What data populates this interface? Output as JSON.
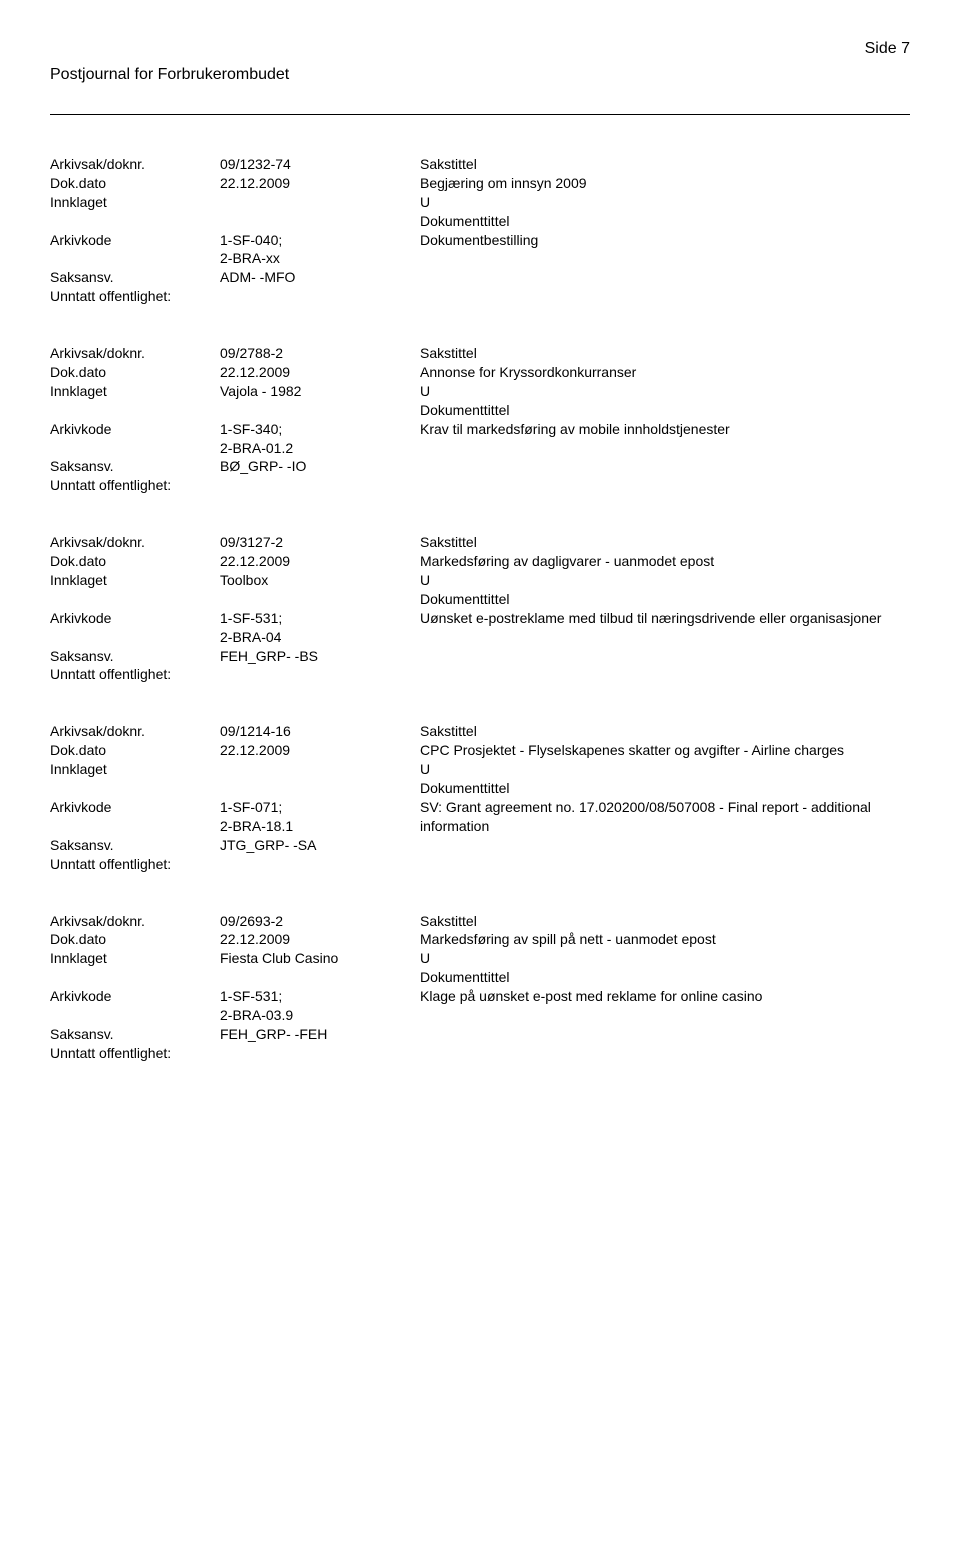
{
  "header": {
    "title": "Postjournal for Forbrukerombudet",
    "page": "Side 7"
  },
  "labels": {
    "arkivsak": "Arkivsak/doknr.",
    "dokdato": "Dok.dato",
    "innklaget": "Innklaget",
    "arkivkode": "Arkivkode",
    "saksansv": "Saksansv.",
    "unntatt": "Unntatt offentlighet:",
    "sakstittel": "Sakstittel",
    "doktittel": "Dokumenttittel"
  },
  "records": [
    {
      "arkivsak": "09/1232-74",
      "dato": "22.12.2009",
      "sakstittel": "Begjæring om innsyn 2009",
      "innklaget": "",
      "utype": "U",
      "arkivkode": "1-SF-040;\n2-BRA-xx",
      "doktittel": "Dokumentbestilling",
      "saksansv": "ADM- -MFO",
      "unntatt": ""
    },
    {
      "arkivsak": "09/2788-2",
      "dato": "22.12.2009",
      "sakstittel": "Annonse for Kryssordkonkurranser",
      "innklaget": "Vajola - 1982",
      "utype": "U",
      "arkivkode": "1-SF-340;\n2-BRA-01.2",
      "doktittel": "Krav til markedsføring av mobile innholdstjenester",
      "saksansv": "BØ_GRP- -IO",
      "unntatt": ""
    },
    {
      "arkivsak": "09/3127-2",
      "dato": "22.12.2009",
      "sakstittel": "Markedsføring av dagligvarer - uanmodet epost",
      "innklaget": "Toolbox",
      "utype": "U",
      "arkivkode": "1-SF-531;\n2-BRA-04",
      "doktittel": "Uønsket e-postreklame med tilbud til næringsdrivende eller organisasjoner",
      "saksansv": "FEH_GRP- -BS",
      "unntatt": ""
    },
    {
      "arkivsak": "09/1214-16",
      "dato": "22.12.2009",
      "sakstittel": "CPC Prosjektet - Flyselskapenes skatter og avgifter - Airline  charges",
      "innklaget": "",
      "utype": "U",
      "arkivkode": "1-SF-071;\n2-BRA-18.1",
      "doktittel": "SV: Grant agreement no. 17.020200/08/507008 -  Final report - additional information",
      "saksansv": "JTG_GRP- -SA",
      "unntatt": ""
    },
    {
      "arkivsak": "09/2693-2",
      "dato": "22.12.2009",
      "sakstittel": "Markedsføring av spill på nett - uanmodet epost",
      "innklaget": "Fiesta Club Casino",
      "utype": "U",
      "arkivkode": "1-SF-531;\n2-BRA-03.9",
      "doktittel": "Klage på uønsket e-post med reklame for online casino",
      "saksansv": "FEH_GRP- -FEH",
      "unntatt": ""
    }
  ]
}
